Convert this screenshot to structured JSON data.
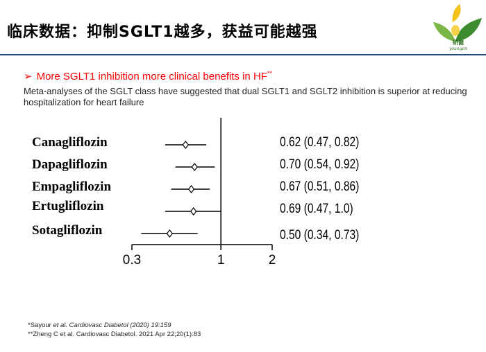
{
  "title": "临床数据：抑制SGLT1越多，获益可能越强",
  "logo": {
    "text": "研健",
    "subtext": "youngen"
  },
  "bullet": {
    "arrow": "➢",
    "text": "More SGLT1 inhibition more clinical benefits in HF",
    "marker": "**"
  },
  "subtitle": "Meta-analyses of the SGLT class have suggested that dual SGLT1 and SGLT2 inhibition is superior at reducing hospitalization for heart failure",
  "chart_data": {
    "type": "forest",
    "title": "",
    "xlabel": "",
    "ylabel": "",
    "xlim": [
      0.3,
      2
    ],
    "x_ticks": [
      "0.3",
      "1",
      "2"
    ],
    "reference_line": 1,
    "rows": [
      {
        "name": "Canagliflozin",
        "hr": 0.62,
        "lo": 0.47,
        "hi": 0.82,
        "label": "0.62 (0.47, 0.82)"
      },
      {
        "name": "Dapagliflozin",
        "hr": 0.7,
        "lo": 0.54,
        "hi": 0.92,
        "label": "0.70 (0.54, 0.92)"
      },
      {
        "name": "Empagliflozin",
        "hr": 0.67,
        "lo": 0.51,
        "hi": 0.86,
        "label": "0.67 (0.51, 0.86)"
      },
      {
        "name": "Ertugliflozin",
        "hr": 0.69,
        "lo": 0.47,
        "hi": 1.0,
        "label": "0.69 (0.47, 1.0)"
      },
      {
        "name": "Sotagliflozin",
        "hr": 0.5,
        "lo": 0.34,
        "hi": 0.73,
        "label": "0.50 (0.34, 0.73)"
      }
    ]
  },
  "references": [
    {
      "prefix": "*Sayour ",
      "etal": "et al.",
      "rest": " Cardiovasc Diabetol (2020) 19:159"
    },
    {
      "prefix": "**Zheng C et al. Cardiovasc Diabetol. 2021 Apr 22;20(1):83",
      "etal": "",
      "rest": ""
    }
  ]
}
